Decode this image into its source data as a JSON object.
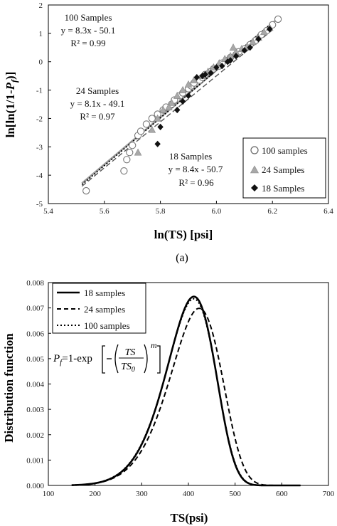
{
  "figure": {
    "caption_a": "(a)"
  },
  "chart_data": [
    {
      "type": "scatter",
      "panel": "a",
      "xlabel": "ln(TS) [psi]",
      "ylabel_parts": [
        "ln[ln(1/1-",
        "P",
        "f",
        ")]"
      ],
      "xlim": [
        5.4,
        6.4
      ],
      "ylim": [
        -5,
        2
      ],
      "x_ticks": [
        "5.4",
        "5.6",
        "5.8",
        "6.0",
        "6.2",
        "6.4"
      ],
      "y_ticks": [
        "2",
        "1",
        "0",
        "-1",
        "-2",
        "-3",
        "-4",
        "-5"
      ],
      "grid": false,
      "legend_position": "bottom-right",
      "annotations": [
        {
          "lines": [
            "100 Samples",
            "y = 8.3x - 50.1",
            "R² = 0.99"
          ],
          "for": "100 samples"
        },
        {
          "lines": [
            "24 Samples",
            "y = 8.1x - 49.1",
            "R² = 0.97"
          ],
          "for": "24 Samples"
        },
        {
          "lines": [
            "18 Samples",
            "y = 8.4x - 50.7",
            "R² = 0.96"
          ],
          "for": "18 Samples"
        }
      ],
      "series": [
        {
          "name": "100 samples",
          "marker": "circle-open",
          "fit": {
            "slope": 8.3,
            "intercept": -50.1,
            "x_range": [
              5.52,
              6.22
            ],
            "style": "solid-gray"
          },
          "points": [
            [
              5.535,
              -4.55
            ],
            [
              5.67,
              -3.85
            ],
            [
              5.68,
              -3.45
            ],
            [
              5.69,
              -3.2
            ],
            [
              5.7,
              -2.95
            ],
            [
              5.72,
              -2.6
            ],
            [
              5.73,
              -2.45
            ],
            [
              5.75,
              -2.2
            ],
            [
              5.77,
              -2.0
            ],
            [
              5.79,
              -1.85
            ],
            [
              5.81,
              -1.7
            ],
            [
              5.82,
              -1.6
            ],
            [
              5.84,
              -1.5
            ],
            [
              5.85,
              -1.35
            ],
            [
              5.87,
              -1.2
            ],
            [
              5.88,
              -1.1
            ],
            [
              5.9,
              -0.95
            ],
            [
              5.91,
              -0.85
            ],
            [
              5.92,
              -0.75
            ],
            [
              5.94,
              -0.65
            ],
            [
              5.95,
              -0.55
            ],
            [
              5.96,
              -0.45
            ],
            [
              5.98,
              -0.35
            ],
            [
              5.99,
              -0.25
            ],
            [
              6.01,
              -0.15
            ],
            [
              6.02,
              -0.05
            ],
            [
              6.04,
              0.05
            ],
            [
              6.05,
              0.15
            ],
            [
              6.07,
              0.25
            ],
            [
              6.08,
              0.35
            ],
            [
              6.1,
              0.45
            ],
            [
              6.12,
              0.6
            ],
            [
              6.14,
              0.75
            ],
            [
              6.16,
              0.95
            ],
            [
              6.18,
              1.1
            ],
            [
              6.2,
              1.3
            ],
            [
              6.22,
              1.5
            ]
          ]
        },
        {
          "name": "24 Samples",
          "marker": "triangle-gray",
          "fit": {
            "slope": 8.1,
            "intercept": -49.1,
            "x_range": [
              5.52,
              6.2
            ],
            "style": "dashed-gray"
          },
          "points": [
            [
              5.72,
              -3.2
            ],
            [
              5.77,
              -2.4
            ],
            [
              5.79,
              -2.0
            ],
            [
              5.81,
              -1.7
            ],
            [
              5.84,
              -1.45
            ],
            [
              5.86,
              -1.2
            ],
            [
              5.88,
              -1.0
            ],
            [
              5.9,
              -0.8
            ],
            [
              5.92,
              -0.65
            ],
            [
              5.95,
              -0.5
            ],
            [
              5.97,
              -0.35
            ],
            [
              5.99,
              -0.2
            ],
            [
              6.01,
              -0.05
            ],
            [
              6.03,
              0.1
            ],
            [
              6.05,
              0.2
            ],
            [
              6.07,
              0.35
            ],
            [
              6.09,
              0.45
            ],
            [
              6.11,
              0.55
            ],
            [
              6.13,
              0.7
            ],
            [
              6.15,
              0.85
            ],
            [
              6.17,
              1.05
            ],
            [
              6.19,
              1.2
            ],
            [
              5.83,
              -1.6
            ],
            [
              6.06,
              0.5
            ]
          ]
        },
        {
          "name": "18 Samples",
          "marker": "diamond-filled",
          "fit": {
            "slope": 8.4,
            "intercept": -50.7,
            "x_range": [
              5.52,
              6.2
            ],
            "style": "dotted-black"
          },
          "points": [
            [
              5.79,
              -2.9
            ],
            [
              5.8,
              -2.3
            ],
            [
              5.86,
              -1.7
            ],
            [
              5.88,
              -1.4
            ],
            [
              5.9,
              -1.2
            ],
            [
              5.93,
              -0.55
            ],
            [
              5.95,
              -0.5
            ],
            [
              5.96,
              -0.45
            ],
            [
              5.98,
              -0.4
            ],
            [
              6.0,
              -0.2
            ],
            [
              6.02,
              -0.15
            ],
            [
              6.04,
              0.0
            ],
            [
              6.05,
              0.05
            ],
            [
              6.07,
              0.2
            ],
            [
              6.1,
              0.4
            ],
            [
              6.12,
              0.5
            ],
            [
              6.15,
              0.8
            ],
            [
              6.19,
              1.15
            ]
          ]
        }
      ]
    },
    {
      "type": "line",
      "panel": "b",
      "xlabel": "TS(psi)",
      "ylabel": "Distribution function",
      "xlim": [
        100,
        700
      ],
      "ylim": [
        0,
        0.008
      ],
      "x_ticks": [
        "100",
        "200",
        "300",
        "400",
        "500",
        "600",
        "700"
      ],
      "y_ticks": [
        "0.000",
        "0.001",
        "0.002",
        "0.003",
        "0.004",
        "0.005",
        "0.006",
        "0.007",
        "0.008"
      ],
      "grid": false,
      "legend_position": "top-left",
      "formula": {
        "lhs": "P",
        "lhs_sub": "f",
        "rhs": "=1-exp",
        "num": "TS",
        "den": "TS",
        "den_sub": "0",
        "exp": "m"
      },
      "series": [
        {
          "name": "18 samples",
          "style": "solid",
          "weibull": {
            "m": 8.4,
            "scale": 418
          }
        },
        {
          "name": "24 samples",
          "style": "dashed",
          "weibull": {
            "m": 8.1,
            "scale": 430
          }
        },
        {
          "name": "100 samples",
          "style": "dotted",
          "weibull": {
            "m": 8.3,
            "scale": 418
          }
        }
      ]
    }
  ]
}
